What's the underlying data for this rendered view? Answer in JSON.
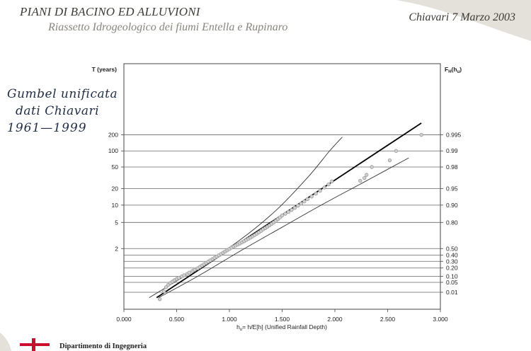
{
  "header": {
    "title": "PIANI DI BACINO ED ALLUVIONI",
    "subtitle": "Riassetto Idrogeologico dei fiumi Entella e Rupinaro",
    "date": "Chiavari 7 Marzo 2003"
  },
  "annotation": {
    "line1": "Gumbel unificata",
    "line2": "dati Chiavari",
    "line3": "1961—1999"
  },
  "footer": {
    "department": "Dipartimento di Ingegneria"
  },
  "colors": {
    "grid": "#666666",
    "points": "#9a9a9a",
    "fit": "#000000",
    "bands": "#333333",
    "flag_red": "#c8102e"
  },
  "chart_data": {
    "type": "scatter",
    "title": "",
    "xlabel": "hu= h/E[h] (Unified Rainfall Depth)",
    "ylabel_left": "T (years)",
    "ylabel_right": "FH(hu)",
    "xlim": [
      0.0,
      3.0
    ],
    "x_ticks": [
      "0.000",
      "0.500",
      "1.000",
      "1.500",
      "2.000",
      "2.500",
      "3.000"
    ],
    "return_periods": [
      {
        "T": 200,
        "label": "200"
      },
      {
        "T": 100,
        "label": "100"
      },
      {
        "T": 50,
        "label": "50"
      },
      {
        "T": 20,
        "label": "20"
      },
      {
        "T": 10,
        "label": "10"
      },
      {
        "T": 5,
        "label": "5"
      },
      {
        "T": 2,
        "label": "2"
      }
    ],
    "probabilities": [
      {
        "F": 0.995,
        "label": "0.995"
      },
      {
        "F": 0.99,
        "label": "0.99"
      },
      {
        "F": 0.98,
        "label": "0.98"
      },
      {
        "F": 0.95,
        "label": "0.95"
      },
      {
        "F": 0.9,
        "label": "0.90"
      },
      {
        "F": 0.8,
        "label": "0.80"
      },
      {
        "F": 0.5,
        "label": "0.50"
      },
      {
        "F": 0.4,
        "label": "0.40"
      },
      {
        "F": 0.3,
        "label": "0.30"
      },
      {
        "F": 0.2,
        "label": "0.20"
      },
      {
        "F": 0.1,
        "label": "0.10"
      },
      {
        "F": 0.05,
        "label": "0.05"
      },
      {
        "F": 0.01,
        "label": "0.01"
      }
    ],
    "grid": true,
    "series": [
      {
        "role": "fit",
        "x": [
          0.31,
          2.82
        ],
        "F": [
          0.003,
          0.997
        ]
      },
      {
        "role": "upper-band",
        "x": [
          0.24,
          0.7,
          1.1,
          1.45,
          1.75,
          1.95,
          2.07
        ],
        "F": [
          0.003,
          0.2,
          0.62,
          0.88,
          0.97,
          0.99,
          0.9945
        ]
      },
      {
        "role": "lower-band",
        "x": [
          0.33,
          0.7,
          1.1,
          1.5,
          1.9,
          2.3,
          2.7
        ],
        "F": [
          0.003,
          0.1,
          0.46,
          0.76,
          0.907,
          0.964,
          0.9865
        ]
      },
      {
        "role": "observations",
        "x": [
          0.34,
          0.38,
          0.4,
          0.42,
          0.44,
          0.46,
          0.48,
          0.5,
          0.52,
          0.55,
          0.57,
          0.6,
          0.62,
          0.65,
          0.67,
          0.7,
          0.72,
          0.74,
          0.76,
          0.78,
          0.8,
          0.82,
          0.84,
          0.86,
          0.88,
          0.9,
          0.92,
          0.94,
          0.96,
          0.98,
          1.0,
          1.02,
          1.04,
          1.06,
          1.08,
          1.1,
          1.12,
          1.14,
          1.16,
          1.18,
          1.2,
          1.22,
          1.24,
          1.26,
          1.28,
          1.3,
          1.32,
          1.34,
          1.36,
          1.38,
          1.4,
          1.42,
          1.44,
          1.46,
          1.48,
          1.5,
          1.53,
          1.56,
          1.59,
          1.62,
          1.65,
          1.68,
          1.71,
          1.74,
          1.78,
          1.82,
          1.86,
          1.9,
          1.94,
          1.97,
          2.24,
          2.28,
          2.3,
          2.35,
          2.52,
          2.58,
          2.82
        ],
        "F": [
          0.002,
          0.012,
          0.025,
          0.035,
          0.045,
          0.055,
          0.065,
          0.075,
          0.085,
          0.098,
          0.11,
          0.125,
          0.14,
          0.16,
          0.175,
          0.195,
          0.215,
          0.235,
          0.255,
          0.275,
          0.295,
          0.315,
          0.335,
          0.355,
          0.375,
          0.395,
          0.415,
          0.435,
          0.455,
          0.475,
          0.495,
          0.515,
          0.53,
          0.545,
          0.56,
          0.575,
          0.59,
          0.605,
          0.62,
          0.635,
          0.65,
          0.665,
          0.68,
          0.695,
          0.71,
          0.725,
          0.74,
          0.752,
          0.764,
          0.776,
          0.788,
          0.8,
          0.812,
          0.824,
          0.836,
          0.848,
          0.858,
          0.868,
          0.878,
          0.888,
          0.898,
          0.906,
          0.914,
          0.922,
          0.93,
          0.938,
          0.945,
          0.952,
          0.958,
          0.963,
          0.964,
          0.968,
          0.972,
          0.98,
          0.985,
          0.99,
          0.995
        ]
      }
    ]
  }
}
